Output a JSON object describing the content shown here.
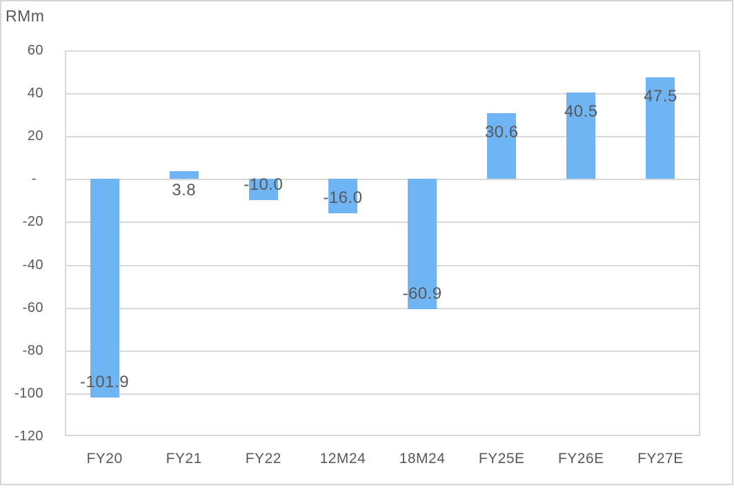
{
  "page": {
    "background": "#ffffff",
    "frame_border_color": "#d6d6d6"
  },
  "chart_data": {
    "type": "bar",
    "title": "RMm",
    "categories": [
      "FY20",
      "FY21",
      "FY22",
      "12M24",
      "18M24",
      "FY25E",
      "FY26E",
      "FY27E"
    ],
    "values": [
      -101.9,
      3.8,
      -10.0,
      -16.0,
      -60.9,
      30.6,
      40.5,
      47.5
    ],
    "data_labels": [
      "-101.9",
      "3.8",
      "-10.0",
      "-16.0",
      "-60.9",
      "30.6",
      "40.5",
      "47.5"
    ],
    "series_name": "",
    "xlabel": "",
    "ylabel": "RMm",
    "ylim": [
      -120,
      60
    ],
    "y_tick_step": 20,
    "y_tick_labels": [
      "60",
      "40",
      "20",
      "-",
      "-20",
      "-40",
      "-60",
      "-80",
      "-100",
      "-120"
    ],
    "grid": true,
    "legend_position": "none",
    "bar_color": "#6fb4f3",
    "gridline_color": "#d9d9d9",
    "text_color": "#595959"
  }
}
